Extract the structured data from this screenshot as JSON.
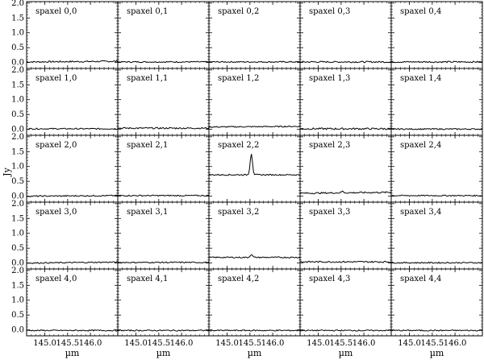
{
  "chart_data": {
    "type": "line",
    "grid_rows": 5,
    "grid_cols": 5,
    "ylabel": "Jy",
    "xlabel": "µm",
    "xlim": [
      144.6,
      146.6
    ],
    "ylim": [
      -0.2,
      2.05
    ],
    "x_ticks": [
      "145.0",
      "145.5",
      "146.0"
    ],
    "x_tick_values": [
      145.0,
      145.5,
      146.0
    ],
    "y_ticks": [
      "0.0",
      "0.5",
      "1.0",
      "1.5",
      "2.0"
    ],
    "y_tick_values": [
      0.0,
      0.5,
      1.0,
      1.5,
      2.0
    ],
    "panels": [
      {
        "label": "spaxel 0,0",
        "baseline": 0.02,
        "slope": 0.02,
        "noise": 0.025,
        "peak": 0.0
      },
      {
        "label": "spaxel 0,1",
        "baseline": 0.02,
        "slope": 0.0,
        "noise": 0.02,
        "peak": 0.0
      },
      {
        "label": "spaxel 0,2",
        "baseline": 0.02,
        "slope": 0.0,
        "noise": 0.02,
        "peak": 0.0
      },
      {
        "label": "spaxel 0,3",
        "baseline": 0.02,
        "slope": 0.0,
        "noise": 0.025,
        "peak": 0.0
      },
      {
        "label": "spaxel 0,4",
        "baseline": 0.02,
        "slope": 0.0,
        "noise": 0.025,
        "peak": 0.0
      },
      {
        "label": "spaxel 1,0",
        "baseline": 0.02,
        "slope": 0.0,
        "noise": 0.02,
        "peak": 0.0
      },
      {
        "label": "spaxel 1,1",
        "baseline": 0.04,
        "slope": 0.0,
        "noise": 0.025,
        "peak": 0.0
      },
      {
        "label": "spaxel 1,2",
        "baseline": 0.08,
        "slope": 0.02,
        "noise": 0.02,
        "peak": 0.0
      },
      {
        "label": "spaxel 1,3",
        "baseline": 0.02,
        "slope": 0.0,
        "noise": 0.03,
        "peak": 0.0
      },
      {
        "label": "spaxel 1,4",
        "baseline": 0.01,
        "slope": 0.0,
        "noise": 0.02,
        "peak": 0.0
      },
      {
        "label": "spaxel 2,0",
        "baseline": 0.0,
        "slope": 0.02,
        "noise": 0.02,
        "peak": 0.0
      },
      {
        "label": "spaxel 2,1",
        "baseline": 0.02,
        "slope": 0.0,
        "noise": 0.02,
        "peak": 0.0
      },
      {
        "label": "spaxel 2,2",
        "baseline": 0.72,
        "slope": 0.0,
        "noise": 0.02,
        "peak": 0.72
      },
      {
        "label": "spaxel 2,3",
        "baseline": 0.1,
        "slope": 0.03,
        "noise": 0.025,
        "peak": 0.05
      },
      {
        "label": "spaxel 2,4",
        "baseline": 0.02,
        "slope": 0.0,
        "noise": 0.02,
        "peak": 0.0
      },
      {
        "label": "spaxel 3,0",
        "baseline": 0.0,
        "slope": 0.03,
        "noise": 0.02,
        "peak": 0.0
      },
      {
        "label": "spaxel 3,1",
        "baseline": 0.02,
        "slope": 0.0,
        "noise": 0.02,
        "peak": 0.0
      },
      {
        "label": "spaxel 3,2",
        "baseline": 0.19,
        "slope": 0.0,
        "noise": 0.02,
        "peak": 0.1
      },
      {
        "label": "spaxel 3,3",
        "baseline": 0.04,
        "slope": 0.0,
        "noise": 0.025,
        "peak": 0.0
      },
      {
        "label": "spaxel 3,4",
        "baseline": 0.01,
        "slope": 0.0,
        "noise": 0.02,
        "peak": 0.0
      },
      {
        "label": "spaxel 4,0",
        "baseline": -0.02,
        "slope": 0.0,
        "noise": 0.02,
        "peak": 0.0
      },
      {
        "label": "spaxel 4,1",
        "baseline": -0.02,
        "slope": 0.0,
        "noise": 0.02,
        "peak": 0.0
      },
      {
        "label": "spaxel 4,2",
        "baseline": -0.02,
        "slope": 0.0,
        "noise": 0.02,
        "peak": 0.0
      },
      {
        "label": "spaxel 4,3",
        "baseline": -0.02,
        "slope": 0.0,
        "noise": 0.02,
        "peak": 0.0
      },
      {
        "label": "spaxel 4,4",
        "baseline": -0.02,
        "slope": 0.0,
        "noise": 0.02,
        "peak": 0.0
      }
    ],
    "line_center_um": 145.53,
    "line_fwhm_um": 0.06,
    "line_color": "#000000"
  }
}
